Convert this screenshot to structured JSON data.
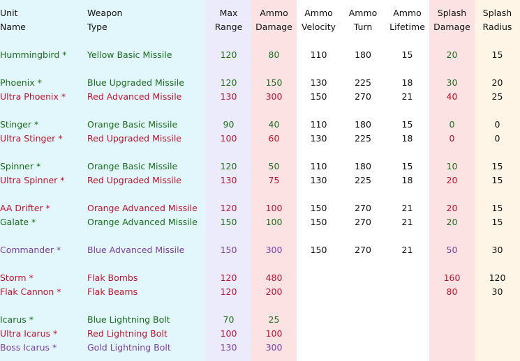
{
  "headers": [
    [
      "Unit",
      "Name"
    ],
    [
      "Weapon",
      "Type"
    ],
    [
      "Max",
      "Range"
    ],
    [
      "Ammo",
      "Damage"
    ],
    [
      "Ammo",
      "Velocity"
    ],
    [
      "Ammo",
      "Turn"
    ],
    [
      "Ammo",
      "Lifetime"
    ],
    [
      "Splash",
      "Damage"
    ],
    [
      "Splash",
      "Radius"
    ]
  ],
  "groups": [
    [
      {
        "color": "green",
        "unit": "Hummingbird *",
        "weapon": "Yellow Basic Missile",
        "range": "120",
        "damage": "80",
        "velocity": "110",
        "turn": "180",
        "lifetime": "15",
        "splash_damage": "20",
        "splash_radius": "15"
      }
    ],
    [
      {
        "color": "green",
        "unit": "Phoenix *",
        "weapon": "Blue Upgraded Missile",
        "range": "120",
        "damage": "150",
        "velocity": "130",
        "turn": "225",
        "lifetime": "18",
        "splash_damage": "30",
        "splash_radius": "20"
      },
      {
        "color": "red",
        "unit": "Ultra Phoenix *",
        "weapon": "Red Advanced Missile",
        "range": "130",
        "damage": "300",
        "velocity": "150",
        "turn": "270",
        "lifetime": "21",
        "splash_damage": "40",
        "splash_radius": "25"
      }
    ],
    [
      {
        "color": "green",
        "unit": "Stinger *",
        "weapon": "Orange Basic Missile",
        "range": "90",
        "damage": "40",
        "velocity": "110",
        "turn": "180",
        "lifetime": "15",
        "splash_damage": "0",
        "splash_radius": "0"
      },
      {
        "color": "red",
        "unit": "Ultra Stinger *",
        "weapon": "Red Upgraded Missile",
        "range": "100",
        "damage": "60",
        "velocity": "130",
        "turn": "225",
        "lifetime": "18",
        "splash_damage": "0",
        "splash_radius": "0"
      }
    ],
    [
      {
        "color": "green",
        "unit": "Spinner *",
        "weapon": "Orange Basic Missile",
        "range": "120",
        "damage": "50",
        "velocity": "110",
        "turn": "180",
        "lifetime": "15",
        "splash_damage": "10",
        "splash_radius": "15"
      },
      {
        "color": "red",
        "unit": "Ultra Spinner *",
        "weapon": "Red Upgraded Missile",
        "range": "130",
        "damage": "75",
        "velocity": "130",
        "turn": "225",
        "lifetime": "18",
        "splash_damage": "20",
        "splash_radius": "15"
      }
    ],
    [
      {
        "color": "red",
        "unit": "AA Drifter *",
        "weapon": "Orange Advanced Missile",
        "range": "120",
        "damage": "100",
        "velocity": "150",
        "turn": "270",
        "lifetime": "21",
        "splash_damage": "20",
        "splash_radius": "15"
      },
      {
        "color": "green",
        "unit": "Galate *",
        "weapon": "Orange Advanced Missile",
        "range": "150",
        "damage": "100",
        "velocity": "150",
        "turn": "270",
        "lifetime": "21",
        "splash_damage": "20",
        "splash_radius": "15"
      }
    ],
    [
      {
        "color": "purple",
        "unit": "Commander *",
        "weapon": "Blue Advanced Missile",
        "range": "150",
        "damage": "300",
        "velocity": "150",
        "turn": "270",
        "lifetime": "21",
        "splash_damage": "50",
        "splash_radius": "30"
      }
    ],
    [
      {
        "color": "red",
        "unit": "Storm *",
        "weapon": "Flak Bombs",
        "range": "120",
        "damage": "480",
        "velocity": "",
        "turn": "",
        "lifetime": "",
        "splash_damage": "160",
        "splash_radius": "120"
      },
      {
        "color": "red",
        "unit": "Flak Cannon *",
        "weapon": "Flak Beams",
        "range": "120",
        "damage": "200",
        "velocity": "",
        "turn": "",
        "lifetime": "",
        "splash_damage": "80",
        "splash_radius": "30"
      }
    ],
    [
      {
        "color": "green",
        "unit": "Icarus *",
        "weapon": "Blue Lightning Bolt",
        "range": "70",
        "damage": "25",
        "velocity": "",
        "turn": "",
        "lifetime": "",
        "splash_damage": "",
        "splash_radius": ""
      },
      {
        "color": "red",
        "unit": "Ultra Icarus *",
        "weapon": "Red Lightning Bolt",
        "range": "100",
        "damage": "100",
        "velocity": "",
        "turn": "",
        "lifetime": "",
        "splash_damage": "",
        "splash_radius": ""
      },
      {
        "color": "purple",
        "unit": "Boss Icarus *",
        "weapon": "Gold Lightning Bolt",
        "range": "130",
        "damage": "300",
        "velocity": "",
        "turn": "",
        "lifetime": "",
        "splash_damage": "",
        "splash_radius": ""
      }
    ]
  ],
  "colors": {
    "green": "#1a6e1a",
    "red": "#c0122c",
    "purple": "#7a3fa6",
    "unit_band": "#e1f7fc",
    "range_band": "#ecebfb",
    "damage_band": "#fde2e4",
    "radius_band": "#fff5e7"
  }
}
